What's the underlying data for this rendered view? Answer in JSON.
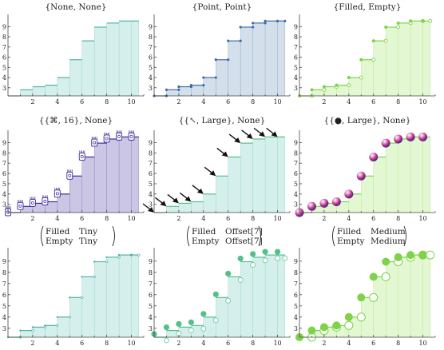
{
  "colors": {
    "teal_line": "#4fb4a8",
    "teal_fill": "#d5efec",
    "blue_line": "#3f6da8",
    "blue_fill": "#d3dfeb",
    "green_line": "#7ed348",
    "green_fill": "#e3f7d3",
    "purple_line": "#3a2d9a",
    "purple_fill": "#cbc6e4",
    "mint_line": "#53c08a",
    "gray_rule": "#9c9c9c"
  },
  "chart_data": [
    {
      "type": "step-area",
      "title": "{None, None}",
      "marker": "none",
      "x": [
        0,
        1,
        2,
        3,
        4,
        5,
        6,
        7,
        8,
        9,
        10
      ],
      "values": [
        2.2,
        2.8,
        3.1,
        3.25,
        4.0,
        5.75,
        7.6,
        8.95,
        9.35,
        9.55,
        9.55
      ],
      "xlim": [
        0,
        11
      ],
      "ylim": [
        2.2,
        10.2
      ],
      "xticks": [
        "2",
        "4",
        "6",
        "8",
        "10"
      ],
      "yticks": [
        "3",
        "4",
        "5",
        "6",
        "7",
        "8",
        "9"
      ],
      "line_color": "#4fb4a8",
      "fill_color": "#d5efec"
    },
    {
      "type": "step-area",
      "title": "{Point, Point}",
      "marker": "point",
      "x": [
        0,
        1,
        2,
        3,
        4,
        5,
        6,
        7,
        8,
        9,
        10
      ],
      "values": [
        2.2,
        2.8,
        3.1,
        3.25,
        4.0,
        5.75,
        7.6,
        8.95,
        9.35,
        9.55,
        9.55
      ],
      "xlim": [
        0,
        11
      ],
      "ylim": [
        2.2,
        10.2
      ],
      "xticks": [
        "2",
        "4",
        "6",
        "8",
        "10"
      ],
      "yticks": [
        "3",
        "4",
        "5",
        "6",
        "7",
        "8",
        "9"
      ],
      "line_color": "#3f6da8",
      "fill_color": "#d3dfeb"
    },
    {
      "type": "step-area",
      "title": "{Filled, Empty}",
      "marker": "filled-empty",
      "x": [
        0,
        1,
        2,
        3,
        4,
        5,
        6,
        7,
        8,
        9,
        10
      ],
      "values": [
        2.2,
        2.8,
        3.1,
        3.25,
        4.0,
        5.75,
        7.6,
        8.95,
        9.35,
        9.55,
        9.55
      ],
      "xlim": [
        0,
        11
      ],
      "ylim": [
        2.2,
        10.2
      ],
      "xticks": [
        "2",
        "4",
        "6",
        "8",
        "10"
      ],
      "yticks": [
        "3",
        "4",
        "5",
        "6",
        "7",
        "8",
        "9"
      ],
      "line_color": "#7ed348",
      "fill_color": "#e3f7d3"
    },
    {
      "type": "step-area",
      "title": "{{⌘, 16}, None}",
      "marker": "glyph",
      "x": [
        0,
        1,
        2,
        3,
        4,
        5,
        6,
        7,
        8,
        9,
        10
      ],
      "values": [
        2.2,
        2.8,
        3.1,
        3.25,
        4.0,
        5.75,
        7.6,
        8.95,
        9.35,
        9.55,
        9.55
      ],
      "xlim": [
        0,
        11
      ],
      "ylim": [
        2.2,
        10.2
      ],
      "xticks": [
        "2",
        "4",
        "6",
        "8",
        "10"
      ],
      "yticks": [
        "3",
        "4",
        "5",
        "6",
        "7",
        "8",
        "9"
      ],
      "line_color": "#3a2d9a",
      "fill_color": "#cbc6e4"
    },
    {
      "type": "step-area",
      "title": "{{↖, Large}, None}",
      "marker": "arrow",
      "x": [
        0,
        1,
        2,
        3,
        4,
        5,
        6,
        7,
        8,
        9,
        10
      ],
      "values": [
        2.2,
        2.8,
        3.1,
        3.25,
        4.0,
        5.75,
        7.6,
        8.95,
        9.35,
        9.55,
        9.55
      ],
      "xlim": [
        0,
        11
      ],
      "ylim": [
        2.2,
        10.2
      ],
      "xticks": [
        "2",
        "4",
        "6",
        "8",
        "10"
      ],
      "yticks": [
        "3",
        "4",
        "5",
        "6",
        "7",
        "8",
        "9"
      ],
      "line_color": "#53c08a",
      "fill_color": "#d5efec"
    },
    {
      "type": "step-area",
      "title": "{{●, Large}, None}",
      "marker": "sphere",
      "x": [
        0,
        1,
        2,
        3,
        4,
        5,
        6,
        7,
        8,
        9,
        10
      ],
      "values": [
        2.2,
        2.8,
        3.1,
        3.25,
        4.0,
        5.75,
        7.6,
        8.95,
        9.35,
        9.55,
        9.55
      ],
      "xlim": [
        0,
        11
      ],
      "ylim": [
        2.2,
        10.2
      ],
      "xticks": [
        "2",
        "4",
        "6",
        "8",
        "10"
      ],
      "yticks": [
        "3",
        "4",
        "5",
        "6",
        "7",
        "8",
        "9"
      ],
      "line_color": "#7ed348",
      "fill_color": "#e3f7d3"
    },
    {
      "type": "step-area",
      "title_matrix": [
        [
          "Filled",
          "Tiny"
        ],
        [
          "Empty",
          "Tiny"
        ]
      ],
      "marker": "tiny",
      "x": [
        0,
        1,
        2,
        3,
        4,
        5,
        6,
        7,
        8,
        9,
        10
      ],
      "values": [
        2.2,
        2.8,
        3.1,
        3.25,
        4.0,
        5.75,
        7.6,
        8.95,
        9.35,
        9.55,
        9.55
      ],
      "xlim": [
        0,
        11
      ],
      "ylim": [
        2.2,
        10.2
      ],
      "xticks": [
        "2",
        "4",
        "6",
        "8",
        "10"
      ],
      "yticks": [
        "3",
        "4",
        "5",
        "6",
        "7",
        "8",
        "9"
      ],
      "line_color": "#4fb4a8",
      "fill_color": "#d5efec"
    },
    {
      "type": "step-area",
      "title_matrix": [
        [
          "Filled",
          "Offset[7]"
        ],
        [
          "Empty",
          "Offset[7]"
        ]
      ],
      "marker": "offset",
      "x": [
        0,
        1,
        2,
        3,
        4,
        5,
        6,
        7,
        8,
        9,
        10
      ],
      "values": [
        2.2,
        2.8,
        3.1,
        3.25,
        4.0,
        5.75,
        7.6,
        8.95,
        9.35,
        9.55,
        9.55
      ],
      "xlim": [
        0,
        11
      ],
      "ylim": [
        2.2,
        10.2
      ],
      "xticks": [
        "2",
        "4",
        "6",
        "8",
        "10"
      ],
      "yticks": [
        "3",
        "4",
        "5",
        "6",
        "7",
        "8",
        "9"
      ],
      "line_color": "#53c08a",
      "fill_color": "#d5efec"
    },
    {
      "type": "step-area",
      "title_matrix": [
        [
          "Filled",
          "Medium"
        ],
        [
          "Empty",
          "Medium"
        ]
      ],
      "marker": "medium",
      "x": [
        0,
        1,
        2,
        3,
        4,
        5,
        6,
        7,
        8,
        9,
        10
      ],
      "values": [
        2.2,
        2.8,
        3.1,
        3.25,
        4.0,
        5.75,
        7.6,
        8.95,
        9.35,
        9.55,
        9.55
      ],
      "xlim": [
        0,
        11
      ],
      "ylim": [
        2.2,
        10.2
      ],
      "xticks": [
        "2",
        "4",
        "6",
        "8",
        "10"
      ],
      "yticks": [
        "3",
        "4",
        "5",
        "6",
        "7",
        "8",
        "9"
      ],
      "line_color": "#7ed348",
      "fill_color": "#e3f7d3"
    }
  ]
}
